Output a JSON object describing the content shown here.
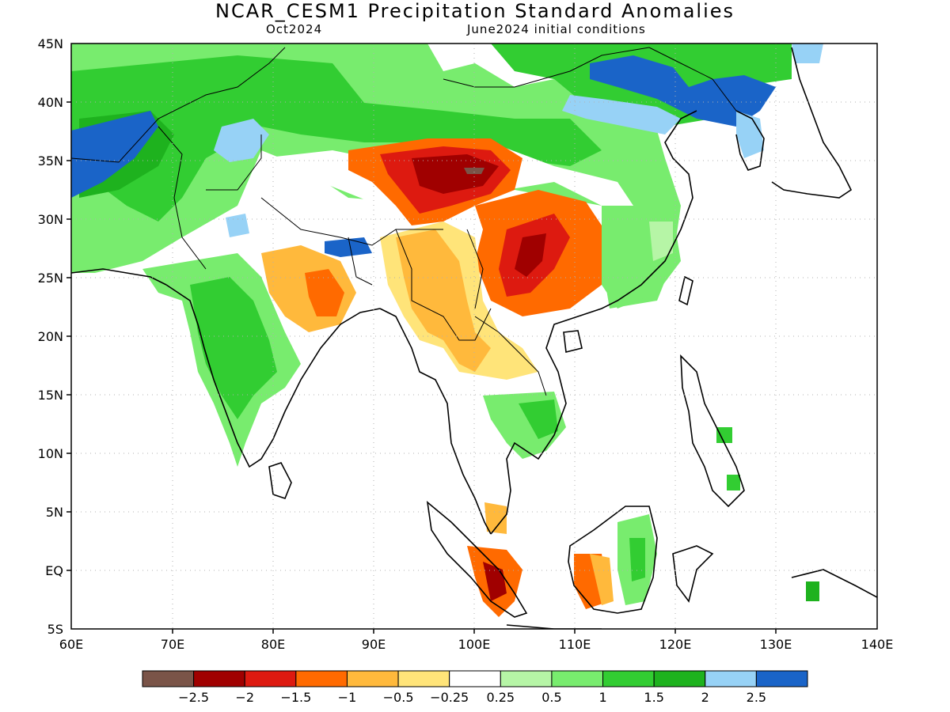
{
  "title": "NCAR_CESM1 Precipitation Standard Anomalies",
  "subtitle_left": "Oct2024",
  "subtitle_right": "June2024 initial conditions",
  "lon_ticks": [
    "60E",
    "70E",
    "80E",
    "90E",
    "100E",
    "110E",
    "120E",
    "130E",
    "140E"
  ],
  "lat_ticks": [
    "45N",
    "40N",
    "35N",
    "30N",
    "25N",
    "20N",
    "15N",
    "10N",
    "5N",
    "EQ",
    "5S"
  ],
  "extent": {
    "lon": [
      60,
      140
    ],
    "lat": [
      -5,
      45
    ]
  },
  "gridlines": true,
  "colorbar": {
    "colors": [
      "#7a5448",
      "#a00000",
      "#dd1a10",
      "#ff6a00",
      "#ffb93c",
      "#ffe479",
      "#ffffff",
      "#b6f5a6",
      "#78ec6e",
      "#32cd32",
      "#1eb21e",
      "#97d2f6",
      "#1a64c8"
    ],
    "labels": [
      "−2.5",
      "−2",
      "−1.5",
      "−1",
      "−0.5",
      "−0.25",
      "0.25",
      "0.5",
      "1",
      "1.5",
      "2",
      "2.5"
    ]
  }
}
